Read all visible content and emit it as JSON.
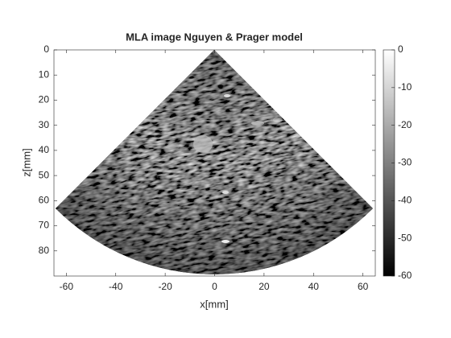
{
  "chart_data": {
    "type": "image",
    "title": "MLA image Nguyen & Prager model",
    "xlabel": "x[mm]",
    "ylabel": "z[mm]",
    "xlim": [
      -65,
      65
    ],
    "ylim": [
      0,
      90
    ],
    "y_reversed": true,
    "colormap": "gray",
    "xticks": [
      -60,
      -40,
      -20,
      0,
      20,
      40,
      60
    ],
    "yticks": [
      0,
      10,
      20,
      30,
      40,
      50,
      60,
      70,
      80
    ],
    "colorbar": {
      "clim": [
        -60,
        0
      ],
      "ticks": [
        0,
        -10,
        -20,
        -30,
        -40,
        -50,
        -60
      ]
    }
  }
}
